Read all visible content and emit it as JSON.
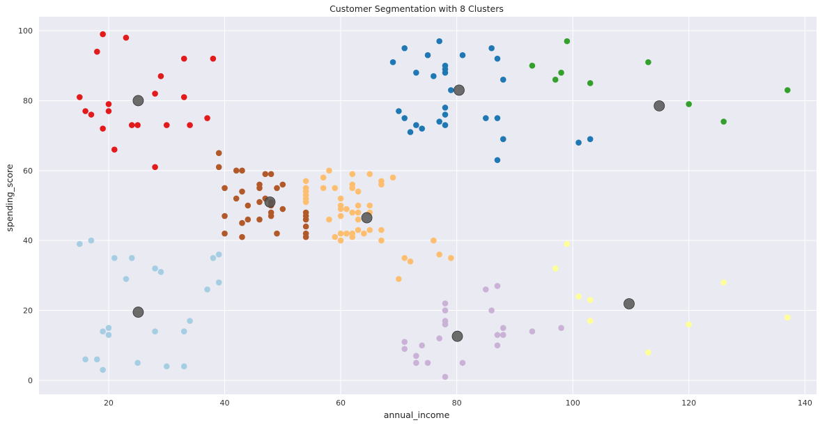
{
  "chart_data": {
    "type": "scatter",
    "title": "Customer Segmentation with 8 Clusters",
    "xlabel": "annual_income",
    "ylabel": "spending_score",
    "xlim": [
      8,
      142
    ],
    "ylim": [
      -4,
      104
    ],
    "xticks": [
      20,
      40,
      60,
      80,
      100,
      120,
      140
    ],
    "yticks": [
      0,
      20,
      40,
      60,
      80,
      100
    ],
    "grid": true,
    "legend": "none",
    "background": "#eaeaf2",
    "grid_color": "#ffffff",
    "series": [
      {
        "color": "#e31a1c",
        "points": [
          [
            15,
            81
          ],
          [
            16,
            77
          ],
          [
            17,
            76
          ],
          [
            18,
            94
          ],
          [
            19,
            99
          ],
          [
            19,
            72
          ],
          [
            20,
            79
          ],
          [
            20,
            77
          ],
          [
            21,
            66
          ],
          [
            23,
            98
          ],
          [
            24,
            73
          ],
          [
            25,
            73
          ],
          [
            28,
            82
          ],
          [
            28,
            61
          ],
          [
            29,
            87
          ],
          [
            30,
            73
          ],
          [
            33,
            92
          ],
          [
            33,
            81
          ],
          [
            34,
            73
          ],
          [
            37,
            75
          ],
          [
            38,
            92
          ]
        ]
      },
      {
        "color": "#1f78b4",
        "points": [
          [
            69,
            91
          ],
          [
            70,
            77
          ],
          [
            71,
            95
          ],
          [
            71,
            75
          ],
          [
            72,
            71
          ],
          [
            73,
            88
          ],
          [
            73,
            73
          ],
          [
            74,
            72
          ],
          [
            75,
            93
          ],
          [
            76,
            87
          ],
          [
            77,
            97
          ],
          [
            77,
            74
          ],
          [
            78,
            90
          ],
          [
            78,
            89
          ],
          [
            78,
            88
          ],
          [
            78,
            78
          ],
          [
            78,
            76
          ],
          [
            78,
            73
          ],
          [
            79,
            83
          ],
          [
            81,
            93
          ],
          [
            85,
            75
          ],
          [
            86,
            95
          ],
          [
            87,
            92
          ],
          [
            87,
            75
          ],
          [
            87,
            63
          ],
          [
            88,
            86
          ],
          [
            88,
            69
          ],
          [
            101,
            68
          ],
          [
            103,
            69
          ]
        ]
      },
      {
        "color": "#33a02c",
        "points": [
          [
            93,
            90
          ],
          [
            97,
            86
          ],
          [
            98,
            88
          ],
          [
            99,
            97
          ],
          [
            103,
            85
          ],
          [
            113,
            91
          ],
          [
            120,
            79
          ],
          [
            126,
            74
          ],
          [
            137,
            83
          ]
        ]
      },
      {
        "color": "#b15928",
        "points": [
          [
            39,
            65
          ],
          [
            39,
            61
          ],
          [
            40,
            55
          ],
          [
            40,
            47
          ],
          [
            40,
            42
          ],
          [
            42,
            60
          ],
          [
            42,
            52
          ],
          [
            43,
            60
          ],
          [
            43,
            54
          ],
          [
            43,
            45
          ],
          [
            43,
            41
          ],
          [
            44,
            50
          ],
          [
            44,
            46
          ],
          [
            46,
            56
          ],
          [
            46,
            55
          ],
          [
            46,
            51
          ],
          [
            46,
            46
          ],
          [
            47,
            59
          ],
          [
            47,
            52
          ],
          [
            48,
            59
          ],
          [
            48,
            51
          ],
          [
            48,
            50
          ],
          [
            48,
            48
          ],
          [
            48,
            47
          ],
          [
            49,
            55
          ],
          [
            49,
            42
          ],
          [
            50,
            56
          ],
          [
            50,
            49
          ],
          [
            54,
            48
          ],
          [
            54,
            47
          ],
          [
            54,
            46
          ],
          [
            54,
            44
          ],
          [
            54,
            42
          ],
          [
            54,
            41
          ]
        ]
      },
      {
        "color": "#fdbf6f",
        "points": [
          [
            54,
            57
          ],
          [
            54,
            55
          ],
          [
            54,
            54
          ],
          [
            54,
            53
          ],
          [
            54,
            52
          ],
          [
            54,
            51
          ],
          [
            57,
            58
          ],
          [
            57,
            55
          ],
          [
            58,
            60
          ],
          [
            58,
            46
          ],
          [
            59,
            55
          ],
          [
            59,
            41
          ],
          [
            60,
            52
          ],
          [
            60,
            50
          ],
          [
            60,
            49
          ],
          [
            60,
            47
          ],
          [
            60,
            42
          ],
          [
            60,
            40
          ],
          [
            61,
            49
          ],
          [
            61,
            42
          ],
          [
            62,
            59
          ],
          [
            62,
            56
          ],
          [
            62,
            55
          ],
          [
            62,
            48
          ],
          [
            62,
            42
          ],
          [
            62,
            41
          ],
          [
            63,
            54
          ],
          [
            63,
            50
          ],
          [
            63,
            48
          ],
          [
            63,
            46
          ],
          [
            63,
            43
          ],
          [
            64,
            42
          ],
          [
            65,
            59
          ],
          [
            65,
            50
          ],
          [
            65,
            48
          ],
          [
            65,
            43
          ],
          [
            67,
            57
          ],
          [
            67,
            56
          ],
          [
            67,
            43
          ],
          [
            67,
            40
          ],
          [
            69,
            58
          ],
          [
            70,
            29
          ],
          [
            71,
            35
          ],
          [
            72,
            34
          ],
          [
            76,
            40
          ],
          [
            77,
            36
          ],
          [
            79,
            35
          ]
        ]
      },
      {
        "color": "#a6cee3",
        "points": [
          [
            15,
            39
          ],
          [
            16,
            6
          ],
          [
            17,
            40
          ],
          [
            18,
            6
          ],
          [
            19,
            14
          ],
          [
            19,
            3
          ],
          [
            20,
            15
          ],
          [
            20,
            13
          ],
          [
            21,
            35
          ],
          [
            23,
            29
          ],
          [
            24,
            35
          ],
          [
            25,
            5
          ],
          [
            28,
            32
          ],
          [
            28,
            14
          ],
          [
            29,
            31
          ],
          [
            30,
            4
          ],
          [
            33,
            14
          ],
          [
            33,
            4
          ],
          [
            34,
            17
          ],
          [
            37,
            26
          ],
          [
            38,
            35
          ],
          [
            39,
            36
          ],
          [
            39,
            28
          ]
        ]
      },
      {
        "color": "#cab2d6",
        "points": [
          [
            71,
            11
          ],
          [
            71,
            9
          ],
          [
            73,
            7
          ],
          [
            73,
            5
          ],
          [
            74,
            10
          ],
          [
            75,
            5
          ],
          [
            77,
            12
          ],
          [
            78,
            22
          ],
          [
            78,
            20
          ],
          [
            78,
            17
          ],
          [
            78,
            16
          ],
          [
            78,
            1
          ],
          [
            81,
            5
          ],
          [
            85,
            26
          ],
          [
            86,
            20
          ],
          [
            87,
            27
          ],
          [
            87,
            13
          ],
          [
            87,
            10
          ],
          [
            88,
            15
          ],
          [
            88,
            13
          ],
          [
            93,
            14
          ],
          [
            98,
            15
          ]
        ]
      },
      {
        "color": "#ffff99",
        "points": [
          [
            97,
            32
          ],
          [
            99,
            39
          ],
          [
            101,
            24
          ],
          [
            103,
            23
          ],
          [
            103,
            17
          ],
          [
            113,
            8
          ],
          [
            120,
            16
          ],
          [
            126,
            28
          ],
          [
            137,
            18
          ]
        ]
      }
    ],
    "centroids": {
      "color": "#555555",
      "points": [
        [
          25.1,
          80.0
        ],
        [
          80.4,
          83.0
        ],
        [
          114.9,
          78.5
        ],
        [
          47.8,
          51.0
        ],
        [
          64.5,
          46.5
        ],
        [
          25.1,
          19.5
        ],
        [
          80.1,
          12.6
        ],
        [
          109.7,
          21.9
        ]
      ]
    }
  }
}
